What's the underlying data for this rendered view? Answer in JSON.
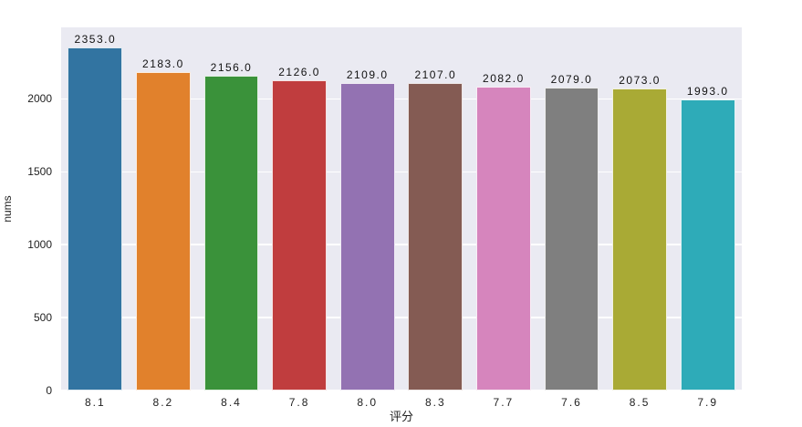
{
  "chart_data": {
    "type": "bar",
    "title": "",
    "xlabel": "评分",
    "ylabel": "nums",
    "categories": [
      "8.1",
      "8.2",
      "8.4",
      "7.8",
      "8.0",
      "8.3",
      "7.7",
      "7.6",
      "8.5",
      "7.9"
    ],
    "values": [
      2353,
      2183,
      2156,
      2126,
      2109,
      2107,
      2082,
      2079,
      2073,
      1993
    ],
    "bar_labels": [
      "2353.0",
      "2183.0",
      "2156.0",
      "2126.0",
      "2109.0",
      "2107.0",
      "2082.0",
      "2079.0",
      "2073.0",
      "1993.0"
    ],
    "bar_colors": [
      "#3274a1",
      "#e1812c",
      "#3a923a",
      "#c03d3e",
      "#9372b2",
      "#845b53",
      "#d685bd",
      "#7f7f7f",
      "#a9aa35",
      "#2eabb8"
    ],
    "yticks": [
      0,
      500,
      1000,
      1500,
      2000
    ],
    "ylim": [
      0,
      2490
    ],
    "grid": true,
    "grid_color": "#ffffff",
    "plot_bg_color": "#eaeaf2",
    "figure_bg_color": "#ffffff",
    "legend": false
  }
}
